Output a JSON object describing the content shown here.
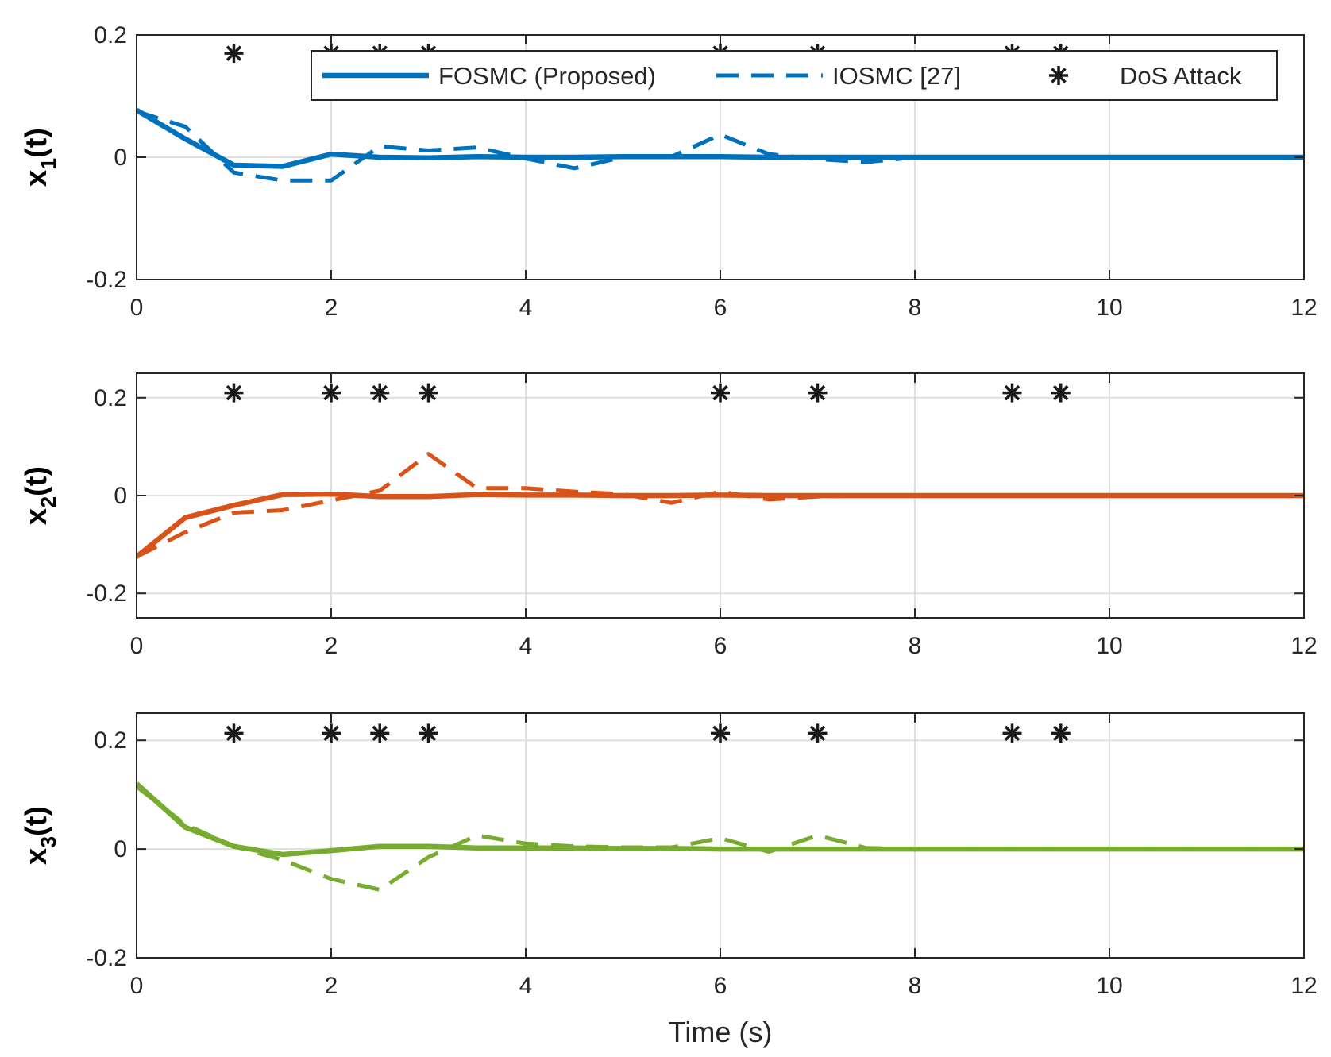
{
  "chart_data": {
    "type": "line",
    "xlabel": "Time (s)",
    "xlim": [
      0,
      12
    ],
    "xticks": [
      "0",
      "2",
      "4",
      "6",
      "8",
      "10",
      "12"
    ],
    "grid": true,
    "legend": {
      "placement": "top-right of first subplot",
      "entries": [
        "FOSMC (Proposed)",
        "IOSMC [27]",
        "DoS Attack"
      ]
    },
    "dos_attack_times": [
      1,
      2,
      2.5,
      3,
      6,
      7,
      9,
      9.5
    ],
    "subplots": [
      {
        "ylabel_main": "x",
        "ylabel_sub": "1",
        "ylabel_tail": "(t)",
        "ylim": [
          -0.2,
          0.2
        ],
        "yticks": [
          "-0.2",
          "0",
          "0.2"
        ],
        "color": "#0072BD",
        "dos_marker_y": 0.17,
        "series": [
          {
            "name": "FOSMC (Proposed)",
            "style": "solid",
            "x": [
              0,
              0.5,
              1,
              1.5,
              2,
              2.5,
              3,
              3.5,
              4,
              4.5,
              5,
              5.5,
              6,
              6.5,
              7,
              7.5,
              8,
              12
            ],
            "y": [
              0.077,
              0.03,
              -0.013,
              -0.015,
              0.005,
              0,
              -0.001,
              0.001,
              0,
              0,
              0.001,
              0.001,
              0.001,
              0,
              0,
              0,
              0,
              0
            ]
          },
          {
            "name": "IOSMC [27]",
            "style": "dashed",
            "x": [
              0,
              0.5,
              1,
              1.5,
              2,
              2.5,
              3,
              3.5,
              4,
              4.5,
              5,
              5.5,
              6,
              6.5,
              7,
              7.5,
              8,
              12
            ],
            "y": [
              0.075,
              0.05,
              -0.025,
              -0.038,
              -0.038,
              0.018,
              0.011,
              0.016,
              -0.002,
              -0.018,
              0,
              0.001,
              0.037,
              0.005,
              -0.003,
              -0.008,
              0,
              0
            ]
          }
        ]
      },
      {
        "ylabel_main": "x",
        "ylabel_sub": "2",
        "ylabel_tail": "(t)",
        "ylim": [
          -0.25,
          0.25
        ],
        "yticks": [
          "-0.2",
          "0",
          "0.2"
        ],
        "color": "#D95319",
        "dos_marker_y": 0.21,
        "series": [
          {
            "name": "FOSMC (Proposed)",
            "style": "solid",
            "x": [
              0,
              0.5,
              1,
              1.5,
              2,
              2.5,
              3,
              3.5,
              4,
              4.5,
              5,
              5.5,
              6,
              6.5,
              7,
              7.5,
              8,
              12
            ],
            "y": [
              -0.125,
              -0.045,
              -0.02,
              0.002,
              0.003,
              -0.002,
              -0.002,
              0.002,
              0.001,
              0.001,
              0,
              0,
              0.001,
              0,
              0,
              0,
              0,
              0
            ]
          },
          {
            "name": "IOSMC [27]",
            "style": "dashed",
            "x": [
              0,
              0.5,
              1,
              1.5,
              2,
              2.5,
              3,
              3.5,
              4,
              4.5,
              5,
              5.5,
              6,
              6.5,
              7,
              7.5,
              8,
              12
            ],
            "y": [
              -0.125,
              -0.075,
              -0.035,
              -0.03,
              -0.01,
              0.01,
              0.085,
              0.015,
              0.015,
              0.008,
              0.003,
              -0.015,
              0.008,
              -0.008,
              -0.002,
              0,
              0,
              0
            ]
          }
        ]
      },
      {
        "ylabel_main": "x",
        "ylabel_sub": "3",
        "ylabel_tail": "(t)",
        "ylim": [
          -0.2,
          0.25
        ],
        "yticks": [
          "-0.2",
          "0",
          "0.2"
        ],
        "color": "#77AC30",
        "dos_marker_y": 0.213,
        "series": [
          {
            "name": "FOSMC (Proposed)",
            "style": "solid",
            "x": [
              0,
              0.5,
              1,
              1.5,
              2,
              2.5,
              3,
              3.5,
              4,
              4.5,
              5,
              5.5,
              6,
              6.5,
              7,
              7.5,
              8,
              12
            ],
            "y": [
              0.12,
              0.04,
              0.005,
              -0.01,
              -0.003,
              0.005,
              0.005,
              0.002,
              0.002,
              0.002,
              0.001,
              0.001,
              0,
              0,
              0,
              0,
              0,
              0
            ]
          },
          {
            "name": "IOSMC [27]",
            "style": "dashed",
            "x": [
              0,
              0.5,
              1,
              1.5,
              2,
              2.5,
              3,
              3.5,
              4,
              4.5,
              5,
              5.5,
              6,
              6.5,
              7,
              7.5,
              8,
              12
            ],
            "y": [
              0.115,
              0.045,
              0.005,
              -0.02,
              -0.055,
              -0.075,
              -0.015,
              0.025,
              0.01,
              0.005,
              0.003,
              0.003,
              0.02,
              -0.005,
              0.025,
              0.002,
              0,
              0
            ]
          }
        ]
      }
    ]
  }
}
